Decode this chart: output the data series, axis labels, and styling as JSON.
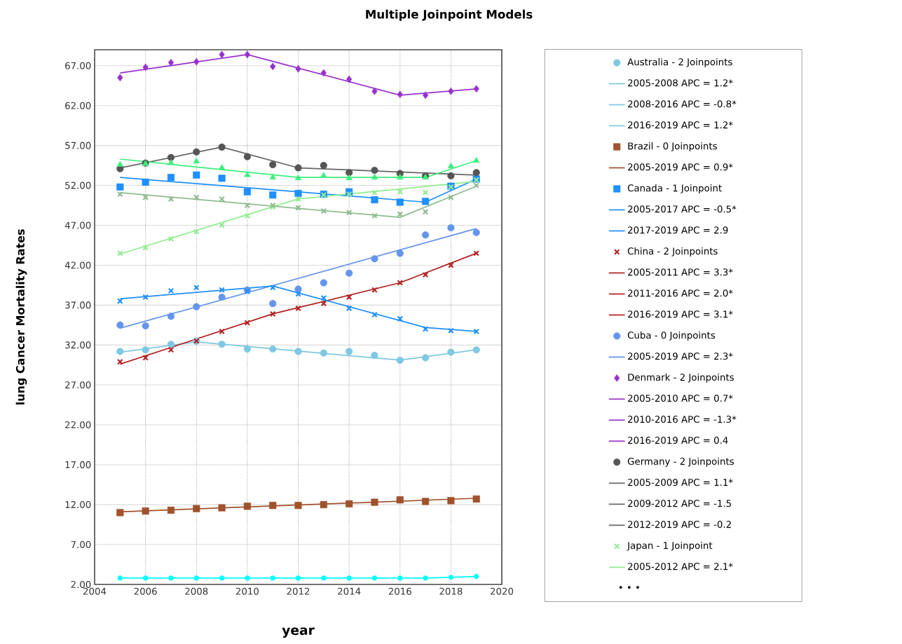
{
  "chart_data": {
    "type": "scatter",
    "title": "Multiple Joinpoint Models",
    "xlabel": "year",
    "ylabel": "lung Cancer Mortality Rates",
    "xlim": [
      2004,
      2020
    ],
    "xticks": [
      2004,
      2006,
      2008,
      2010,
      2012,
      2014,
      2016,
      2018,
      2020
    ],
    "ylim": [
      2,
      69
    ],
    "yticks": [
      {
        "value": 2,
        "label": "2.00"
      },
      {
        "value": 7,
        "label": "7.00"
      },
      {
        "value": 12,
        "label": "12.00"
      },
      {
        "value": 17,
        "label": "17.00"
      },
      {
        "value": 22,
        "label": "22.00"
      },
      {
        "value": 27,
        "label": "27.00"
      },
      {
        "value": 32,
        "label": "32.00"
      },
      {
        "value": 37,
        "label": "37.00"
      },
      {
        "value": 42,
        "label": "42.00"
      },
      {
        "value": 47,
        "label": "47.00"
      },
      {
        "value": 52,
        "label": "52.00"
      },
      {
        "value": 57,
        "label": "57.00"
      },
      {
        "value": 62,
        "label": "62.00"
      },
      {
        "value": 67,
        "label": "67.00"
      }
    ],
    "grid": true,
    "legend": "right",
    "annotations": [
      "• • •"
    ],
    "x": [
      2005,
      2006,
      2007,
      2008,
      2009,
      2010,
      2011,
      2012,
      2013,
      2014,
      2015,
      2016,
      2017,
      2018,
      2019
    ],
    "series": [
      {
        "name": "Australia - 2 Joinpoints",
        "color": "#7ec8e3",
        "marker": "circle",
        "values": [
          31.2,
          31.4,
          32.1,
          32.5,
          32.1,
          31.5,
          31.5,
          31.2,
          31.0,
          31.2,
          30.7,
          30.1,
          30.4,
          31.1,
          31.4
        ]
      },
      {
        "name": "2005-2008 APC = 1.2*",
        "type": "line",
        "color": "#7ec8e3",
        "x": [
          2005,
          2008
        ],
        "values": [
          31.1,
          32.4
        ]
      },
      {
        "name": "2008-2016 APC = -0.8*",
        "type": "line",
        "color": "#7ec8e3",
        "x": [
          2008,
          2016
        ],
        "values": [
          32.4,
          30.1
        ]
      },
      {
        "name": "2016-2019 APC = 1.2*",
        "type": "line",
        "color": "#7ec8e3",
        "x": [
          2016,
          2019
        ],
        "values": [
          30.1,
          31.4
        ]
      },
      {
        "name": "Brazil - 0 Joinpoints",
        "color": "#a0522d",
        "marker": "square",
        "values": [
          11.0,
          11.2,
          11.3,
          11.5,
          11.6,
          11.8,
          11.9,
          11.9,
          12.0,
          12.1,
          12.3,
          12.6,
          12.4,
          12.5,
          12.7
        ]
      },
      {
        "name": "2005-2019 APC = 0.9*",
        "type": "line",
        "color": "#a0522d",
        "x": [
          2005,
          2019
        ],
        "values": [
          11.1,
          12.8
        ]
      },
      {
        "name": "Canada - 1 Joinpoint",
        "color": "#1e90ff",
        "marker": "square",
        "values": [
          51.8,
          52.4,
          53.0,
          53.3,
          52.9,
          51.2,
          50.8,
          51.0,
          50.9,
          51.2,
          50.2,
          49.9,
          50.0,
          51.9,
          52.8
        ]
      },
      {
        "name": "2005-2017 APC = -0.5*",
        "type": "line",
        "color": "#1e90ff",
        "x": [
          2005,
          2017
        ],
        "values": [
          53.0,
          49.9
        ]
      },
      {
        "name": "2017-2019 APC = 2.9",
        "type": "line",
        "color": "#1e90ff",
        "x": [
          2017,
          2019
        ],
        "values": [
          49.9,
          52.8
        ]
      },
      {
        "name": "China - 2 Joinpoints",
        "color": "#b22222",
        "marker": "cross",
        "values": [
          29.9,
          30.4,
          31.4,
          32.5,
          33.7,
          34.8,
          35.9,
          36.6,
          37.2,
          38.0,
          38.9,
          39.8,
          40.8,
          42.0,
          43.5
        ]
      },
      {
        "name": "2005-2011 APC = 3.3*",
        "type": "line",
        "color": "#b22222",
        "x": [
          2005,
          2011
        ],
        "values": [
          29.6,
          35.9
        ]
      },
      {
        "name": "2011-2016 APC = 2.0*",
        "type": "line",
        "color": "#b22222",
        "x": [
          2011,
          2016
        ],
        "values": [
          35.9,
          39.8
        ]
      },
      {
        "name": "2016-2019 APC = 3.1*",
        "type": "line",
        "color": "#b22222",
        "x": [
          2016,
          2019
        ],
        "values": [
          39.8,
          43.5
        ]
      },
      {
        "name": "Cuba - 0 Joinpoints",
        "color": "#6495ed",
        "marker": "circle",
        "values": [
          34.5,
          34.4,
          35.6,
          36.8,
          38.0,
          38.9,
          37.2,
          39.0,
          39.8,
          41.0,
          42.8,
          43.5,
          45.8,
          46.7,
          46.1
        ]
      },
      {
        "name": "2005-2019 APC = 2.3*",
        "type": "line",
        "color": "#6495ed",
        "x": [
          2005,
          2019
        ],
        "values": [
          34.1,
          46.6
        ]
      },
      {
        "name": "Denmark - 2 Joinpoints",
        "color": "#9932cc",
        "marker": "diamond",
        "values": [
          65.5,
          66.8,
          67.4,
          67.5,
          68.4,
          68.4,
          66.9,
          66.6,
          66.1,
          65.3,
          63.8,
          63.4,
          63.3,
          63.8,
          64.1
        ]
      },
      {
        "name": "2005-2010 APC = 0.7*",
        "type": "line",
        "color": "#9932cc",
        "x": [
          2005,
          2010
        ],
        "values": [
          66.1,
          68.4
        ]
      },
      {
        "name": "2010-2016 APC = -1.3*",
        "type": "line",
        "color": "#9932cc",
        "x": [
          2010,
          2016
        ],
        "values": [
          68.4,
          63.3
        ]
      },
      {
        "name": "2016-2019 APC = 0.4",
        "type": "line",
        "color": "#9932cc",
        "x": [
          2016,
          2019
        ],
        "values": [
          63.3,
          64.1
        ]
      },
      {
        "name": "Germany - 2 Joinpoints",
        "color": "#555555",
        "marker": "circle",
        "values": [
          54.1,
          54.8,
          55.5,
          56.2,
          56.8,
          55.6,
          54.6,
          54.2,
          54.5,
          53.6,
          53.9,
          53.5,
          53.2,
          53.2,
          53.6
        ]
      },
      {
        "name": "2005-2009 APC = 1.1*",
        "type": "line",
        "color": "#666666",
        "x": [
          2005,
          2009
        ],
        "values": [
          54.2,
          56.8
        ]
      },
      {
        "name": "2009-2012 APC = -1.5",
        "type": "line",
        "color": "#666666",
        "x": [
          2009,
          2012
        ],
        "values": [
          56.8,
          54.2
        ]
      },
      {
        "name": "2012-2019 APC = -0.2",
        "type": "line",
        "color": "#666666",
        "x": [
          2012,
          2019
        ],
        "values": [
          54.2,
          53.3
        ]
      },
      {
        "name": "Japan - 1 Joinpoint",
        "color": "#90ee90",
        "marker": "cross",
        "values": [
          43.5,
          44.2,
          45.3,
          46.2,
          47.0,
          48.2,
          49.3,
          50.3,
          50.8,
          50.9,
          51.1,
          51.2,
          51.1,
          51.8,
          52.7
        ]
      },
      {
        "name": "2005-2012 APC = 2.1*",
        "type": "line",
        "color": "#90ee90",
        "x": [
          2005,
          2012
        ],
        "values": [
          43.4,
          50.3
        ]
      },
      {
        "type": "line",
        "color": "#90ee90",
        "x": [
          2012,
          2019
        ],
        "values": [
          50.3,
          52.5
        ]
      },
      {
        "color": "#3cf07a",
        "marker": "triangle",
        "values": [
          54.6,
          54.7,
          54.8,
          55.0,
          54.2,
          53.3,
          53.0,
          52.9,
          53.2,
          52.9,
          53.0,
          53.0,
          53.0,
          54.4,
          55.1
        ]
      },
      {
        "type": "line",
        "color": "#3cf07a",
        "x": [
          2005,
          2012,
          2017,
          2019
        ],
        "values": [
          55.3,
          53.0,
          53.0,
          55.1
        ]
      },
      {
        "color": "#8fbc8f",
        "marker": "cross",
        "values": [
          50.9,
          50.5,
          50.3,
          50.5,
          50.3,
          49.5,
          49.5,
          49.2,
          48.8,
          48.6,
          48.2,
          48.4,
          48.7,
          50.5,
          52.0
        ]
      },
      {
        "type": "line",
        "color": "#8fbc8f",
        "x": [
          2005,
          2016,
          2019
        ],
        "values": [
          51.1,
          48.0,
          51.9
        ]
      },
      {
        "color": "#1e90ff",
        "marker": "cross",
        "values": [
          37.5,
          38.0,
          38.8,
          39.2,
          38.9,
          38.7,
          39.2,
          38.4,
          37.9,
          36.6,
          35.8,
          35.3,
          34.0,
          33.8,
          33.7
        ]
      },
      {
        "type": "line",
        "color": "#1e90ff",
        "x": [
          2005,
          2011,
          2017,
          2019
        ],
        "values": [
          37.8,
          39.4,
          34.2,
          33.7
        ]
      },
      {
        "type": "line",
        "color": "#00ffff",
        "marker": "circle",
        "values": [
          2.8,
          2.8,
          2.8,
          2.8,
          2.8,
          2.8,
          2.8,
          2.8,
          2.8,
          2.8,
          2.8,
          2.8,
          2.8,
          2.9,
          3.0
        ]
      }
    ]
  }
}
